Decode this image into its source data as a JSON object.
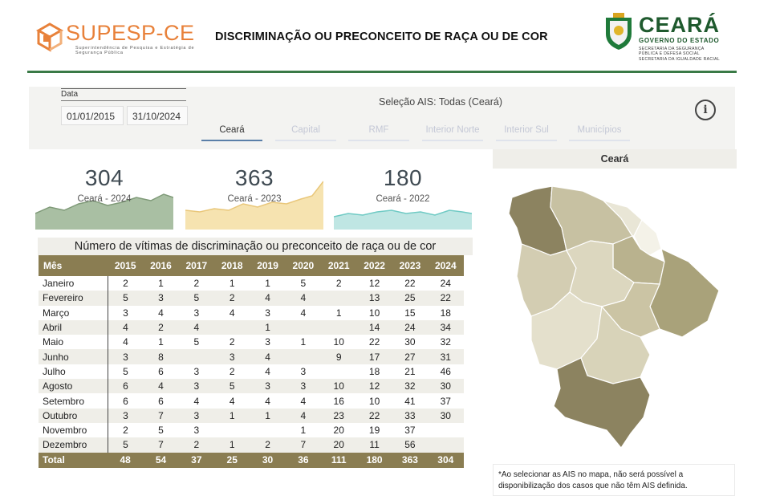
{
  "header": {
    "brand_left": "SUPESP-CE",
    "brand_left_sub": "Superintendência de Pesquisa e Estratégia de Segurança Pública",
    "title": "DISCRIMINAÇÃO OU PRECONCEITO DE RAÇA OU DE COR",
    "brand_right": "CEARÁ",
    "brand_right_gov": "GOVERNO DO ESTADO",
    "brand_right_sec1": "SECRETARIA DA SEGURANÇA",
    "brand_right_sec2": "PÚBLICA E DEFESA SOCIAL",
    "brand_right_sec3": "SECRETARIA DA IGUALDADE RACIAL"
  },
  "filters": {
    "date_label": "Data",
    "date_start": "01/01/2015",
    "date_end": "31/10/2024",
    "selection": "Seleção AIS: Todas (Ceará)",
    "info_glyph": "i",
    "tabs": [
      {
        "label": "Ceará",
        "active": true
      },
      {
        "label": "Capital",
        "active": false
      },
      {
        "label": "RMF",
        "active": false
      },
      {
        "label": "Interior Norte",
        "active": false
      },
      {
        "label": "Interior Sul",
        "active": false
      },
      {
        "label": "Municípios",
        "active": false
      }
    ]
  },
  "kpis": [
    {
      "value": "304",
      "label": "Ceará - 2024",
      "color": "#a9bfa3",
      "line": "#7f9a78"
    },
    {
      "value": "363",
      "label": "Ceará - 2023",
      "color": "#f6e3b0",
      "line": "#e9c77a"
    },
    {
      "value": "180",
      "label": "Ceará - 2022",
      "color": "#bfe6e3",
      "line": "#6fcac4"
    }
  ],
  "table": {
    "title": "Número de vítimas de discriminação ou preconceito de raça ou de cor",
    "header_month": "Mês",
    "years": [
      "2015",
      "2016",
      "2017",
      "2018",
      "2019",
      "2020",
      "2021",
      "2022",
      "2023",
      "2024"
    ],
    "rows": [
      {
        "month": "Janeiro",
        "values": [
          "2",
          "1",
          "2",
          "1",
          "1",
          "5",
          "2",
          "12",
          "22",
          "24"
        ]
      },
      {
        "month": "Fevereiro",
        "values": [
          "5",
          "3",
          "5",
          "2",
          "4",
          "4",
          "",
          "13",
          "25",
          "22"
        ]
      },
      {
        "month": "Março",
        "values": [
          "3",
          "4",
          "3",
          "4",
          "3",
          "4",
          "1",
          "10",
          "15",
          "18"
        ]
      },
      {
        "month": "Abril",
        "values": [
          "4",
          "2",
          "4",
          "",
          "1",
          "",
          "",
          "14",
          "24",
          "34"
        ]
      },
      {
        "month": "Maio",
        "values": [
          "4",
          "1",
          "5",
          "2",
          "3",
          "1",
          "10",
          "22",
          "30",
          "32"
        ]
      },
      {
        "month": "Junho",
        "values": [
          "3",
          "8",
          "",
          "3",
          "4",
          "",
          "9",
          "17",
          "27",
          "31"
        ]
      },
      {
        "month": "Julho",
        "values": [
          "5",
          "6",
          "3",
          "2",
          "4",
          "3",
          "",
          "18",
          "21",
          "46"
        ]
      },
      {
        "month": "Agosto",
        "values": [
          "6",
          "4",
          "3",
          "5",
          "3",
          "3",
          "10",
          "12",
          "32",
          "30"
        ]
      },
      {
        "month": "Setembro",
        "values": [
          "6",
          "6",
          "4",
          "4",
          "4",
          "4",
          "16",
          "10",
          "41",
          "37"
        ]
      },
      {
        "month": "Outubro",
        "values": [
          "3",
          "7",
          "3",
          "1",
          "1",
          "4",
          "23",
          "22",
          "33",
          "30"
        ]
      },
      {
        "month": "Novembro",
        "values": [
          "2",
          "5",
          "3",
          "",
          "",
          "1",
          "20",
          "19",
          "37",
          ""
        ]
      },
      {
        "month": "Dezembro",
        "values": [
          "5",
          "7",
          "2",
          "1",
          "2",
          "7",
          "20",
          "11",
          "56",
          ""
        ]
      }
    ],
    "total_label": "Total",
    "totals": [
      "48",
      "54",
      "37",
      "25",
      "30",
      "36",
      "111",
      "180",
      "363",
      "304"
    ]
  },
  "map": {
    "title": "Ceará",
    "note": "*Ao selecionar as AIS no mapa, não será possível a disponibilização dos casos que não têm AIS definida."
  },
  "colors": {
    "accent_green": "#3a7a46",
    "table_header": "#8a7d52",
    "brand_orange": "#e8813a"
  }
}
